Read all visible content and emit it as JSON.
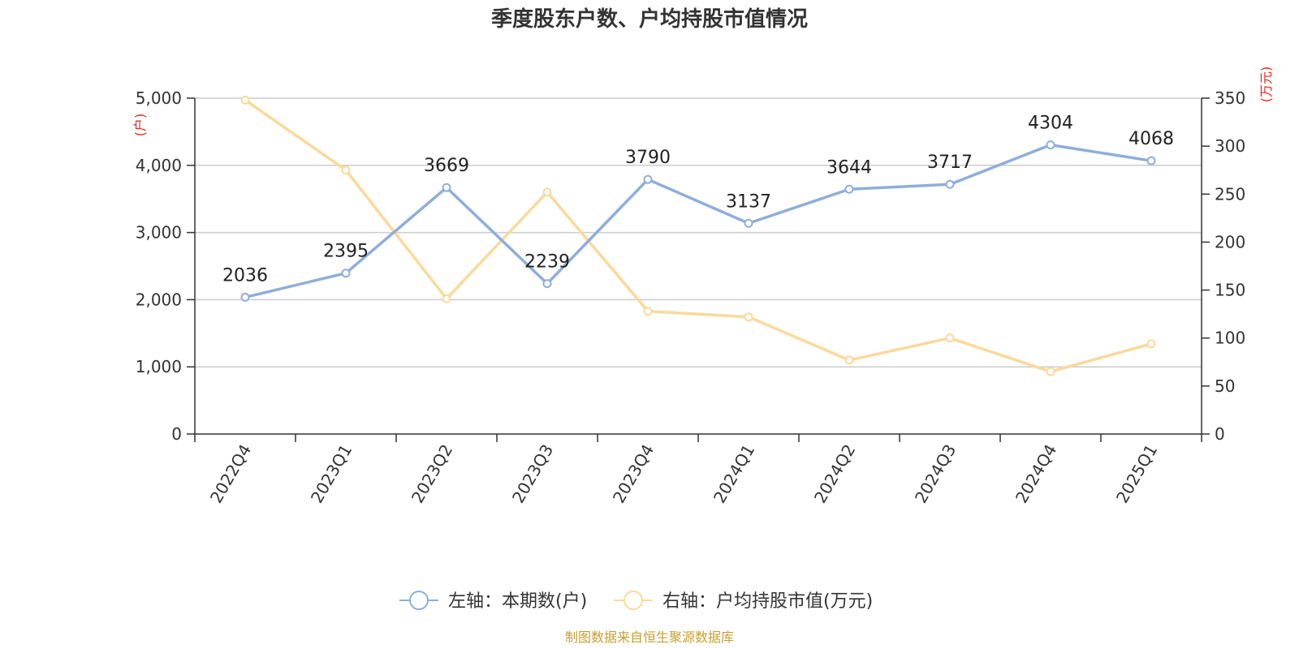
{
  "chart_data": {
    "type": "line",
    "title": "季度股东户数、户均持股市值情况",
    "categories": [
      "2022Q4",
      "2023Q1",
      "2023Q2",
      "2023Q3",
      "2023Q4",
      "2024Q1",
      "2024Q2",
      "2024Q3",
      "2024Q4",
      "2025Q1"
    ],
    "left_axis": {
      "unit": "(户)",
      "ylim": [
        0,
        5000
      ],
      "ticks": [
        "0",
        "1,000",
        "2,000",
        "3,000",
        "4,000",
        "5,000"
      ]
    },
    "right_axis": {
      "unit": "(万元)",
      "ylim": [
        0,
        350
      ],
      "ticks": [
        "0",
        "50",
        "100",
        "150",
        "200",
        "250",
        "300",
        "350"
      ]
    },
    "series": [
      {
        "name": "左轴：本期数(户)",
        "axis": "left",
        "color": "#8eaedb",
        "values": [
          2036,
          2395,
          3669,
          2239,
          3790,
          3137,
          3644,
          3717,
          4304,
          4068
        ],
        "labels": [
          "2036",
          "2395",
          "3669",
          "2239",
          "3790",
          "3137",
          "3644",
          "3717",
          "4304",
          "4068"
        ]
      },
      {
        "name": "右轴：户均持股市值(万元)",
        "axis": "right",
        "color": "#fbd99a",
        "values": [
          348,
          275,
          141,
          252,
          128,
          122,
          77,
          100,
          65,
          94
        ]
      }
    ],
    "grid": true,
    "legend": "bottom-center"
  },
  "source": "制图数据来自恒生聚源数据库",
  "colors": {
    "unit_label": "#e8241c",
    "source_text": "#c8a030",
    "axis": "#333333",
    "grid": "#cccccc"
  }
}
